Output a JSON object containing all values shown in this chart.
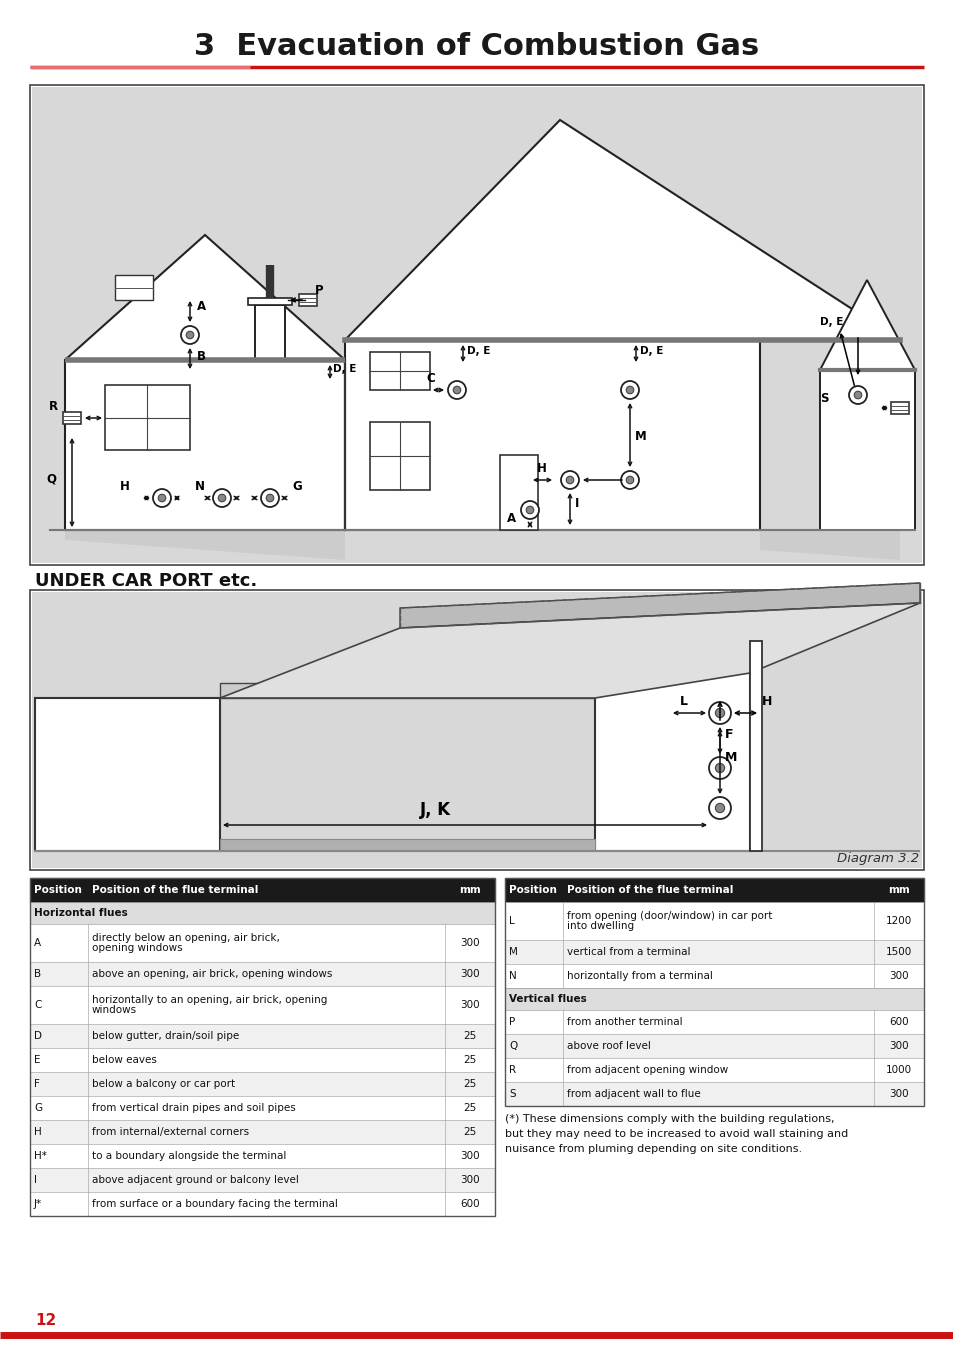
{
  "title": "3  Evacuation of Combustion Gas",
  "title_color": "#1a1a1a",
  "title_fontsize": 22,
  "diagram_label": "Diagram 3.2",
  "under_carport_label": "UNDER CAR PORT etc.",
  "table1_rows": [
    [
      "A",
      "directly below an opening, air brick,\nopening windows",
      "300"
    ],
    [
      "B",
      "above an opening, air brick, opening windows",
      "300"
    ],
    [
      "C",
      "horizontally to an opening, air brick, opening\nwindows",
      "300"
    ],
    [
      "D",
      "below gutter, drain/soil pipe",
      "25"
    ],
    [
      "E",
      "below eaves",
      "25"
    ],
    [
      "F",
      "below a balcony or car port",
      "25"
    ],
    [
      "G",
      "from vertical drain pipes and soil pipes",
      "25"
    ],
    [
      "H",
      "from internal/external corners",
      "25"
    ],
    [
      "H*",
      "to a boundary alongside the terminal",
      "300"
    ],
    [
      "I",
      "above adjacent ground or balcony level",
      "300"
    ],
    [
      "J*",
      "from surface or a boundary facing the terminal",
      "600"
    ]
  ],
  "table2_rows": [
    [
      "L",
      "from opening (door/window) in car port\ninto dwelling",
      "1200"
    ],
    [
      "M",
      "vertical from a terminal",
      "1500"
    ],
    [
      "N",
      "horizontally from a terminal",
      "300"
    ]
  ],
  "table2_rows2": [
    [
      "P",
      "from another terminal",
      "600"
    ],
    [
      "Q",
      "above roof level",
      "300"
    ],
    [
      "R",
      "from adjacent opening window",
      "1000"
    ],
    [
      "S",
      "from adjacent wall to flue",
      "300"
    ]
  ],
  "footnote": "(*) These dimensions comply with the building regulations,\nbut they may need to be increased to avoid wall staining and\nnuisance from pluming depending on site conditions.",
  "page_number": "12"
}
